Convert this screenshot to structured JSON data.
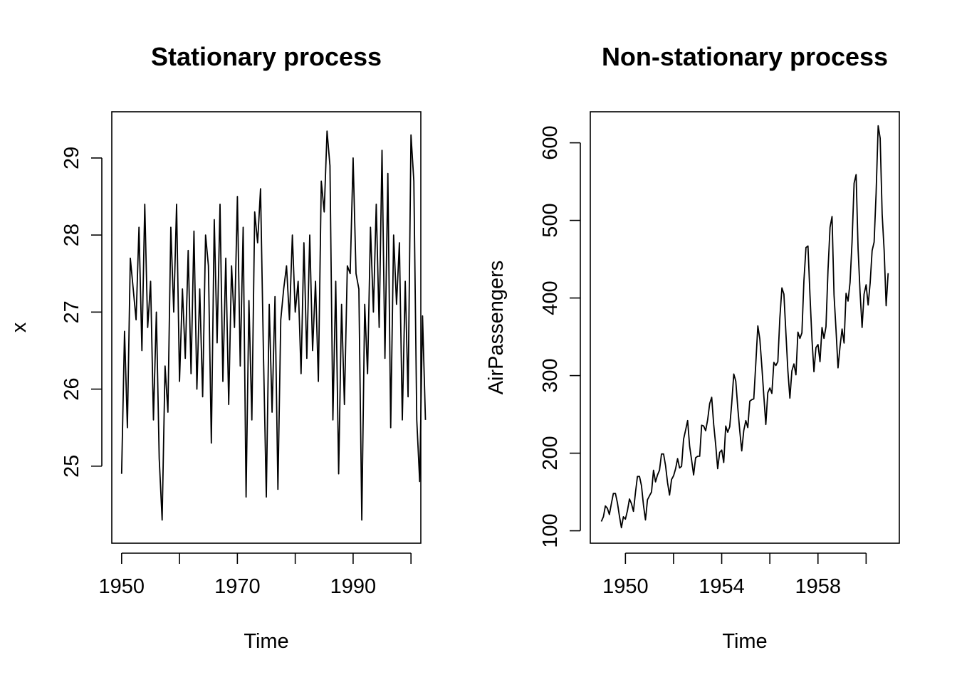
{
  "chart_data": [
    {
      "type": "line",
      "title": "Stationary process",
      "xlabel": "Time",
      "ylabel": "x",
      "xlim": [
        1948.3,
        2001.7
      ],
      "ylim": [
        24.0,
        29.6
      ],
      "x_ticks": [
        1950,
        1960,
        1970,
        1980,
        1990,
        2000
      ],
      "x_tick_labels": [
        "1950",
        "",
        "1970",
        "",
        "1990",
        ""
      ],
      "y_ticks": [
        25,
        26,
        27,
        28,
        29
      ],
      "y_tick_labels": [
        "25",
        "26",
        "27",
        "28",
        "29"
      ],
      "grid": false,
      "series": [
        {
          "x_start": 1950,
          "x_step": 0.5,
          "values": [
            24.9,
            26.75,
            25.5,
            27.7,
            27.3,
            26.9,
            28.1,
            26.5,
            28.4,
            26.8,
            27.4,
            25.6,
            27.0,
            25.1,
            24.3,
            26.3,
            25.7,
            28.1,
            27.0,
            28.4,
            26.1,
            27.3,
            26.4,
            27.8,
            26.2,
            28.05,
            26.0,
            27.3,
            25.9,
            28.0,
            27.6,
            25.3,
            28.2,
            26.6,
            28.4,
            26.1,
            27.7,
            25.8,
            27.6,
            26.8,
            28.5,
            26.3,
            28.1,
            24.6,
            27.15,
            25.6,
            28.3,
            27.9,
            28.6,
            26.5,
            24.6,
            27.1,
            25.7,
            27.2,
            24.7,
            26.9,
            27.3,
            27.6,
            26.9,
            28.0,
            27.0,
            27.4,
            26.2,
            27.9,
            26.4,
            28.0,
            26.5,
            27.4,
            26.1,
            28.7,
            28.3,
            29.35,
            28.9,
            25.6,
            27.4,
            24.9,
            27.1,
            25.8,
            27.6,
            27.5,
            29.0,
            27.5,
            27.3,
            24.3,
            27.1,
            26.2,
            28.1,
            27.0,
            28.4,
            26.8,
            29.1,
            26.4,
            28.8,
            25.5,
            28.0,
            27.1,
            27.9,
            25.6,
            27.4,
            25.9,
            29.3,
            28.7,
            25.6,
            24.8,
            26.95,
            25.6
          ]
        }
      ]
    },
    {
      "type": "line",
      "title": "Non-stationary process",
      "xlabel": "Time",
      "ylabel": "AirPassengers",
      "xlim": [
        1948.54,
        1961.38
      ],
      "ylim": [
        84.0,
        640.0
      ],
      "x_ticks": [
        1950,
        1952,
        1954,
        1956,
        1958,
        1960
      ],
      "x_tick_labels": [
        "1950",
        "",
        "1954",
        "",
        "1958",
        ""
      ],
      "y_ticks": [
        100,
        200,
        300,
        400,
        500,
        600
      ],
      "y_tick_labels": [
        "100",
        "200",
        "300",
        "400",
        "500",
        "600"
      ],
      "grid": false,
      "series": [
        {
          "x_start": 1949,
          "x_step": 0.0833333,
          "values": [
            112,
            118,
            132,
            129,
            121,
            135,
            148,
            148,
            136,
            119,
            104,
            118,
            115,
            126,
            141,
            135,
            125,
            149,
            170,
            170,
            158,
            133,
            114,
            140,
            145,
            150,
            178,
            163,
            172,
            178,
            199,
            199,
            184,
            162,
            146,
            166,
            171,
            180,
            193,
            181,
            183,
            218,
            230,
            242,
            209,
            191,
            172,
            194,
            196,
            196,
            236,
            235,
            229,
            243,
            264,
            272,
            237,
            211,
            180,
            201,
            204,
            188,
            235,
            227,
            234,
            264,
            302,
            293,
            259,
            229,
            203,
            229,
            242,
            233,
            267,
            269,
            270,
            315,
            364,
            347,
            312,
            274,
            237,
            278,
            284,
            277,
            317,
            313,
            318,
            374,
            413,
            405,
            355,
            306,
            271,
            306,
            315,
            301,
            356,
            348,
            355,
            422,
            465,
            467,
            404,
            347,
            305,
            336,
            340,
            318,
            362,
            348,
            363,
            435,
            491,
            505,
            404,
            359,
            310,
            337,
            360,
            342,
            406,
            396,
            420,
            472,
            548,
            559,
            463,
            407,
            362,
            405,
            417,
            391,
            419,
            461,
            472,
            535,
            622,
            606,
            508,
            461,
            390,
            432
          ]
        }
      ]
    }
  ]
}
